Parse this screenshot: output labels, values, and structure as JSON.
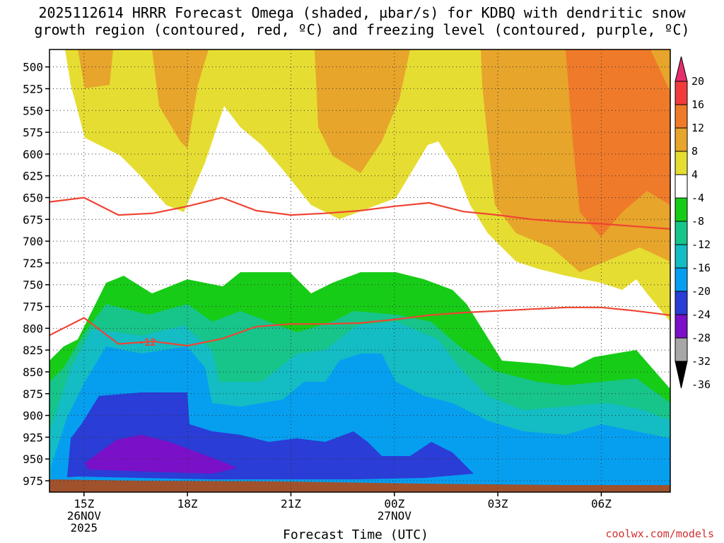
{
  "title_line1": "2025112614 HRRR Forecast Omega (shaded, µbar/s) for KDBQ with dendritic snow",
  "title_line2": "growth region (contoured, red, ºC) and freezing level (contoured, purple, ºC)",
  "credit": "coolwx.com/models",
  "chart_data": {
    "type": "heatmap",
    "xlabel": "Forecast Time (UTC)",
    "ylabel": "",
    "x_ticks": [
      {
        "label": [
          "15Z",
          "26NOV",
          "2025"
        ],
        "hour": 1
      },
      {
        "label": [
          "18Z"
        ],
        "hour": 4
      },
      {
        "label": [
          "21Z"
        ],
        "hour": 7
      },
      {
        "label": [
          "00Z",
          "27NOV"
        ],
        "hour": 10
      },
      {
        "label": [
          "03Z"
        ],
        "hour": 13
      },
      {
        "label": [
          "06Z"
        ],
        "hour": 16
      }
    ],
    "x_range_hours": [
      0,
      18
    ],
    "y_pressure_ticks": [
      500,
      525,
      550,
      575,
      600,
      625,
      650,
      675,
      700,
      725,
      750,
      775,
      800,
      825,
      850,
      875,
      900,
      925,
      950,
      975
    ],
    "y_range": [
      480,
      988
    ],
    "y_direction": "pressure increasing downward",
    "grid": true,
    "colorbar": {
      "labels": [
        20,
        16,
        12,
        8,
        4,
        -4,
        -8,
        -12,
        -16,
        -20,
        -24,
        -28,
        -32,
        -36
      ],
      "colors": [
        "#e62e6e",
        "#f23c3c",
        "#ef7a2a",
        "#e7a52b",
        "#e6dd33",
        "#ffffff",
        "#17cc17",
        "#17c48a",
        "#14bcc3",
        "#069ff0",
        "#2a3dd6",
        "#7a10c8",
        "#a7a7a7",
        "#000000"
      ]
    },
    "omega_regions": [
      {
        "name": "upward motion",
        "value_range": [
          4,
          8
        ],
        "color": "#e6dd33"
      },
      {
        "name": "upward motion",
        "value_range": [
          8,
          12
        ],
        "color": "#e7a52b"
      },
      {
        "name": "upward motion",
        "value_range": [
          12,
          16
        ],
        "color": "#ef7a2a"
      },
      {
        "name": "downward motion",
        "value_range": [
          -8,
          -4
        ],
        "color": "#17cc17"
      },
      {
        "name": "downward motion",
        "value_range": [
          -12,
          -8
        ],
        "color": "#17c48a"
      },
      {
        "name": "downward motion",
        "value_range": [
          -16,
          -12
        ],
        "color": "#14bcc3"
      },
      {
        "name": "downward motion",
        "value_range": [
          -20,
          -16
        ],
        "color": "#069ff0"
      },
      {
        "name": "downward motion",
        "value_range": [
          -24,
          -20
        ],
        "color": "#2a3dd6"
      },
      {
        "name": "downward motion",
        "value_range": [
          -28,
          -24
        ],
        "color": "#7a10c8"
      }
    ],
    "contours": [
      {
        "name": "dendritic growth region top",
        "color": "#ef4433",
        "points": [
          [
            0,
            655
          ],
          [
            1,
            650
          ],
          [
            2,
            670
          ],
          [
            3,
            668
          ],
          [
            4,
            660
          ],
          [
            5,
            650
          ],
          [
            6,
            665
          ],
          [
            7,
            670
          ],
          [
            8,
            668
          ],
          [
            9,
            665
          ],
          [
            10,
            660
          ],
          [
            11,
            656
          ],
          [
            12,
            666
          ],
          [
            13,
            670
          ],
          [
            14,
            675
          ],
          [
            15,
            678
          ],
          [
            16,
            680
          ],
          [
            17,
            683
          ],
          [
            18,
            686
          ]
        ]
      },
      {
        "name": "dendritic growth region bottom",
        "color": "#ef4433",
        "label": "-12",
        "points": [
          [
            0,
            808
          ],
          [
            1,
            788
          ],
          [
            2,
            818
          ],
          [
            3,
            815
          ],
          [
            4,
            820
          ],
          [
            5,
            812
          ],
          [
            6,
            798
          ],
          [
            7,
            795
          ],
          [
            8,
            795
          ],
          [
            9,
            794
          ],
          [
            10,
            790
          ],
          [
            11,
            785
          ],
          [
            12,
            782
          ],
          [
            13,
            780
          ],
          [
            14,
            778
          ],
          [
            15,
            776
          ],
          [
            16,
            776
          ],
          [
            17,
            780
          ],
          [
            18,
            785
          ]
        ]
      }
    ]
  }
}
